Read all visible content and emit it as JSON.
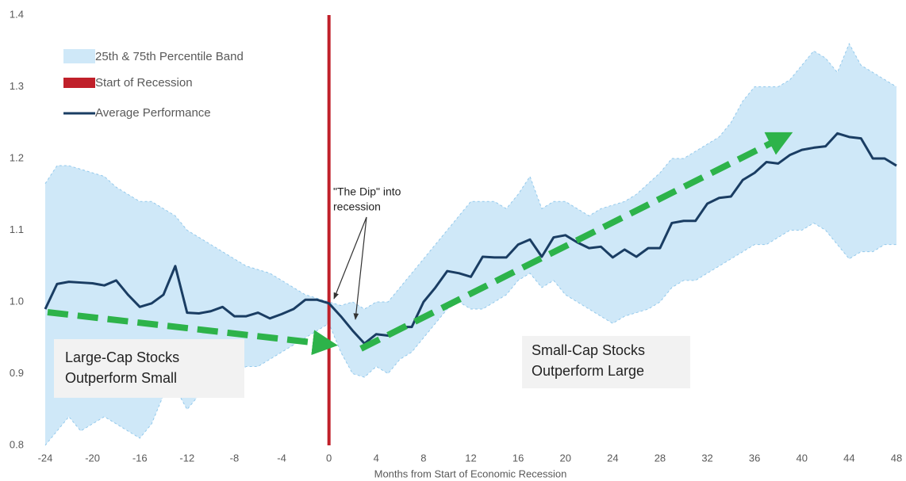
{
  "chart_data": {
    "type": "line",
    "x_label": "Months from Start of Economic Recession",
    "x": [
      -24,
      -23,
      -22,
      -21,
      -20,
      -19,
      -18,
      -17,
      -16,
      -15,
      -14,
      -13,
      -12,
      -11,
      -10,
      -9,
      -8,
      -7,
      -6,
      -5,
      -4,
      -3,
      -2,
      -1,
      0,
      1,
      2,
      3,
      4,
      5,
      6,
      7,
      8,
      9,
      10,
      11,
      12,
      13,
      14,
      15,
      16,
      17,
      18,
      19,
      20,
      21,
      22,
      23,
      24,
      25,
      26,
      27,
      28,
      29,
      30,
      31,
      32,
      33,
      34,
      35,
      36,
      37,
      38,
      39,
      40,
      41,
      42,
      43,
      44,
      45,
      46,
      47,
      48
    ],
    "series": [
      {
        "name": "Average Performance",
        "color": "#1a3d63",
        "values": [
          0.99,
          1.025,
          1.028,
          1.027,
          1.026,
          1.023,
          1.03,
          1.01,
          0.993,
          0.998,
          1.01,
          1.05,
          0.985,
          0.984,
          0.987,
          0.993,
          0.98,
          0.98,
          0.985,
          0.977,
          0.983,
          0.99,
          1.003,
          1.003,
          0.998,
          0.98,
          0.96,
          0.942,
          0.955,
          0.953,
          0.965,
          0.965,
          1.0,
          1.02,
          1.043,
          1.04,
          1.035,
          1.063,
          1.062,
          1.062,
          1.08,
          1.087,
          1.063,
          1.09,
          1.093,
          1.083,
          1.075,
          1.077,
          1.062,
          1.073,
          1.063,
          1.075,
          1.075,
          1.11,
          1.113,
          1.113,
          1.137,
          1.145,
          1.147,
          1.17,
          1.18,
          1.195,
          1.193,
          1.205,
          1.212,
          1.215,
          1.217,
          1.235,
          1.23,
          1.228,
          1.2,
          1.2,
          1.19
        ]
      }
    ],
    "band": {
      "name": "25th & 75th Percentile Band",
      "color": "#cfe8f8",
      "edge_color": "#93c9ec",
      "upper": [
        1.165,
        1.19,
        1.19,
        1.185,
        1.18,
        1.175,
        1.16,
        1.15,
        1.14,
        1.14,
        1.13,
        1.12,
        1.1,
        1.09,
        1.08,
        1.07,
        1.06,
        1.05,
        1.045,
        1.04,
        1.03,
        1.02,
        1.01,
        1.005,
        1.0,
        0.995,
        1.0,
        0.99,
        1.0,
        1.0,
        1.02,
        1.04,
        1.06,
        1.08,
        1.1,
        1.12,
        1.14,
        1.14,
        1.14,
        1.13,
        1.15,
        1.175,
        1.13,
        1.14,
        1.14,
        1.13,
        1.12,
        1.13,
        1.135,
        1.14,
        1.15,
        1.165,
        1.18,
        1.2,
        1.2,
        1.21,
        1.22,
        1.23,
        1.25,
        1.28,
        1.3,
        1.3,
        1.3,
        1.31,
        1.33,
        1.35,
        1.34,
        1.32,
        1.36,
        1.33,
        1.32,
        1.31,
        1.3
      ],
      "lower": [
        0.8,
        0.82,
        0.84,
        0.82,
        0.83,
        0.84,
        0.83,
        0.82,
        0.81,
        0.83,
        0.87,
        0.88,
        0.85,
        0.87,
        0.88,
        0.89,
        0.9,
        0.91,
        0.91,
        0.92,
        0.93,
        0.94,
        0.95,
        0.96,
        0.97,
        0.93,
        0.9,
        0.895,
        0.91,
        0.9,
        0.92,
        0.93,
        0.95,
        0.97,
        0.99,
        1.0,
        0.99,
        0.99,
        1.0,
        1.01,
        1.03,
        1.04,
        1.02,
        1.03,
        1.01,
        1.0,
        0.99,
        0.98,
        0.97,
        0.98,
        0.985,
        0.99,
        1.0,
        1.02,
        1.03,
        1.03,
        1.04,
        1.05,
        1.06,
        1.07,
        1.08,
        1.08,
        1.09,
        1.1,
        1.1,
        1.11,
        1.1,
        1.08,
        1.06,
        1.07,
        1.07,
        1.08,
        1.08
      ]
    },
    "recession": {
      "name": "Start of Recession",
      "x": 0,
      "color": "#c0202a"
    },
    "xlim": [
      -24,
      48
    ],
    "xticks": [
      -24,
      -20,
      -16,
      -12,
      -8,
      -4,
      0,
      4,
      8,
      12,
      16,
      20,
      24,
      28,
      32,
      36,
      40,
      44,
      48
    ],
    "ylim": [
      0.8,
      1.4
    ],
    "yticks": [
      0.8,
      0.9,
      {
        "value": 1,
        "label": "1.0"
      },
      1.1,
      1.2,
      1.3,
      1.4
    ],
    "legend": "upper left",
    "annotations": [
      {
        "text": [
          "\"The Dip\" into",
          "recession"
        ]
      },
      {
        "text": [
          "Large-Cap Stocks",
          "Outperform Small"
        ]
      },
      {
        "text": [
          "Small-Cap Stocks",
          "Outperform Large"
        ]
      }
    ]
  }
}
